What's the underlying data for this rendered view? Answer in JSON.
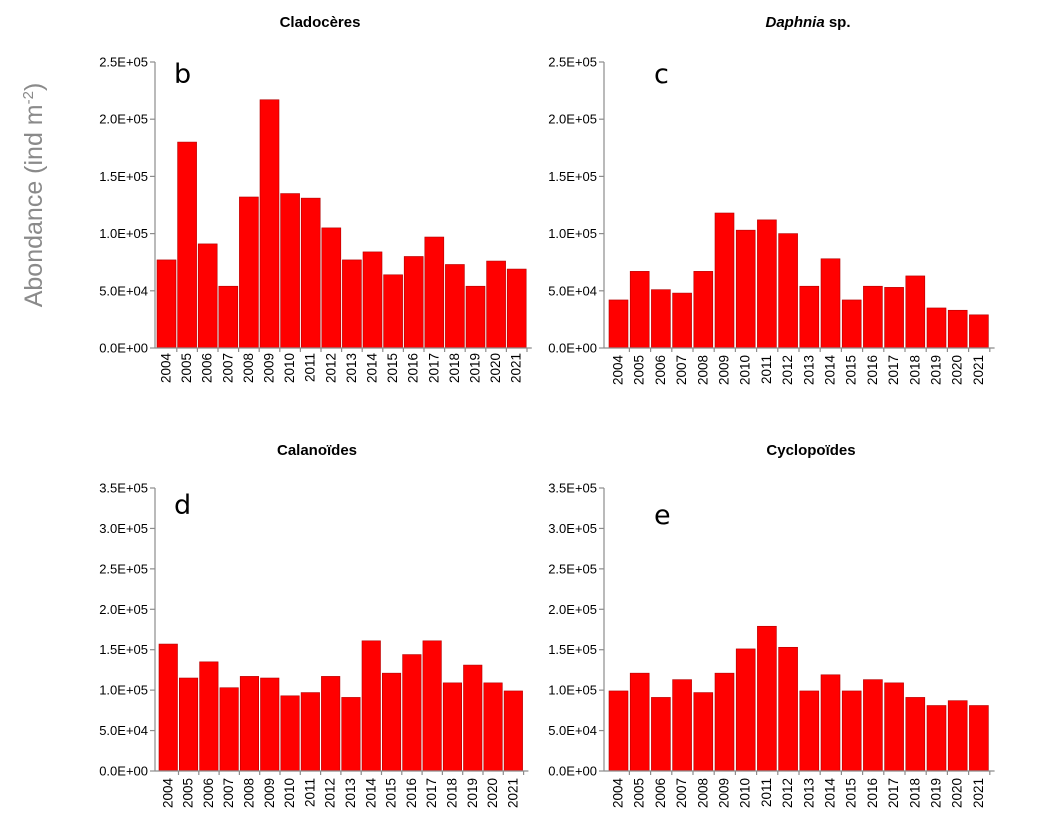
{
  "ylabel_main": "Abondance (ind m",
  "ylabel_sup": "-2",
  "ylabel_end": ")",
  "colors": {
    "bar": "#ff0000",
    "bar_edge": "#b30000",
    "axis": "#8c8c8c"
  },
  "chart_data": [
    {
      "type": "bar",
      "title": "Cladocères",
      "title_italic": "",
      "title_rest": "",
      "letter": "b",
      "categories": [
        "2004",
        "2005",
        "2006",
        "2007",
        "2008",
        "2009",
        "2010",
        "2011",
        "2012",
        "2013",
        "2014",
        "2015",
        "2016",
        "2017",
        "2018",
        "2019",
        "2020",
        "2021"
      ],
      "values": [
        77000,
        180000,
        91000,
        54000,
        132000,
        217000,
        135000,
        131000,
        105000,
        77000,
        84000,
        64000,
        80000,
        97000,
        73000,
        54000,
        76000,
        69000
      ],
      "ylim": [
        0,
        250000
      ],
      "yticks": [
        "0.0E+00",
        "5.0E+04",
        "1.0E+05",
        "1.5E+05",
        "2.0E+05",
        "2.5E+05"
      ],
      "grid": false
    },
    {
      "type": "bar",
      "title": "",
      "title_italic": "Daphnia",
      "title_rest": " sp.",
      "letter": "c",
      "categories": [
        "2004",
        "2005",
        "2006",
        "2007",
        "2008",
        "2009",
        "2010",
        "2011",
        "2012",
        "2013",
        "2014",
        "2015",
        "2016",
        "2017",
        "2018",
        "2019",
        "2020",
        "2021"
      ],
      "values": [
        42000,
        67000,
        51000,
        48000,
        67000,
        118000,
        103000,
        112000,
        100000,
        54000,
        78000,
        42000,
        54000,
        53000,
        63000,
        35000,
        33000,
        29000
      ],
      "ylim": [
        0,
        250000
      ],
      "yticks": [
        "0.0E+00",
        "5.0E+04",
        "1.0E+05",
        "1.5E+05",
        "2.0E+05",
        "2.5E+05"
      ],
      "grid": false
    },
    {
      "type": "bar",
      "title": "Calanoïdes",
      "title_italic": "",
      "title_rest": "",
      "letter": "d",
      "categories": [
        "2004",
        "2005",
        "2006",
        "2007",
        "2008",
        "2009",
        "2010",
        "2011",
        "2012",
        "2013",
        "2014",
        "2015",
        "2016",
        "2017",
        "2018",
        "2019",
        "2020",
        "2021"
      ],
      "values": [
        157000,
        115000,
        135000,
        103000,
        117000,
        115000,
        93000,
        97000,
        117000,
        91000,
        161000,
        121000,
        144000,
        161000,
        109000,
        131000,
        109000,
        99000
      ],
      "ylim": [
        0,
        350000
      ],
      "yticks": [
        "0.0E+00",
        "5.0E+04",
        "1.0E+05",
        "1.5E+05",
        "2.0E+05",
        "2.5E+05",
        "3.0E+05",
        "3.5E+05"
      ],
      "grid": false
    },
    {
      "type": "bar",
      "title": "Cyclopoïdes",
      "title_italic": "",
      "title_rest": "",
      "letter": "e",
      "categories": [
        "2004",
        "2005",
        "2006",
        "2007",
        "2008",
        "2009",
        "2010",
        "2011",
        "2012",
        "2013",
        "2014",
        "2015",
        "2016",
        "2017",
        "2018",
        "2019",
        "2020",
        "2021"
      ],
      "values": [
        99000,
        121000,
        91000,
        113000,
        97000,
        121000,
        151000,
        179000,
        153000,
        99000,
        119000,
        99000,
        113000,
        109000,
        91000,
        81000,
        87000,
        81000
      ],
      "ylim": [
        0,
        350000
      ],
      "yticks": [
        "0.0E+00",
        "5.0E+04",
        "1.0E+05",
        "1.5E+05",
        "2.0E+05",
        "2.5E+05",
        "3.0E+05",
        "3.5E+05"
      ],
      "grid": false
    }
  ]
}
